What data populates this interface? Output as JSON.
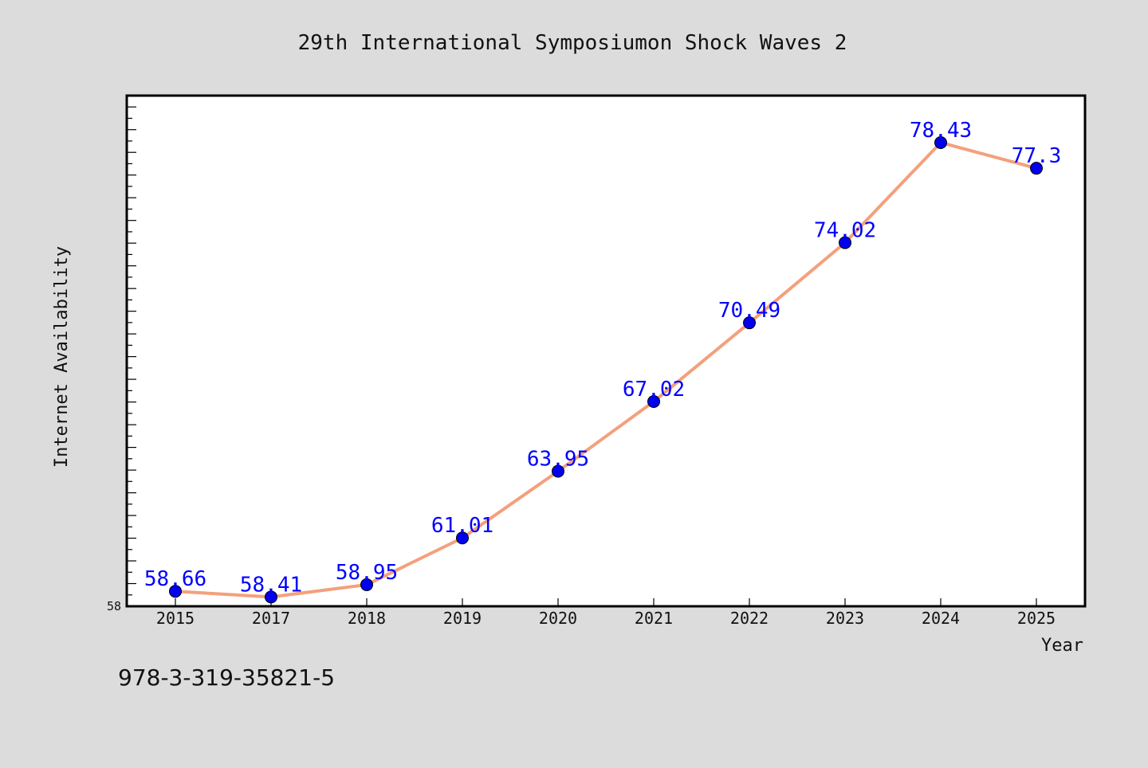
{
  "chart_data": {
    "type": "line",
    "title": "29th International Symposiumon Shock Waves 2",
    "xlabel": "Year",
    "ylabel": "Internet Availability",
    "categories": [
      "2015",
      "2017",
      "2018",
      "2019",
      "2020",
      "2021",
      "2022",
      "2023",
      "2024",
      "2025"
    ],
    "series": [
      {
        "values": [
          58.66,
          58.41,
          58.95,
          61.01,
          63.95,
          67.02,
          70.49,
          74.02,
          78.43,
          77.3
        ]
      }
    ],
    "data_labels": [
      "58.66",
      "58.41",
      "58.95",
      "61.01",
      "63.95",
      "67.02",
      "70.49",
      "74.02",
      "78.43",
      "77.3"
    ],
    "y_tick_labels": [
      "58"
    ],
    "ylim": [
      58,
      80.5
    ],
    "grid": false,
    "line_color": "#f4a07c",
    "marker_color": "#0000ee",
    "label_color": "#0000ff"
  },
  "footer_code": "978-3-319-35821-5"
}
